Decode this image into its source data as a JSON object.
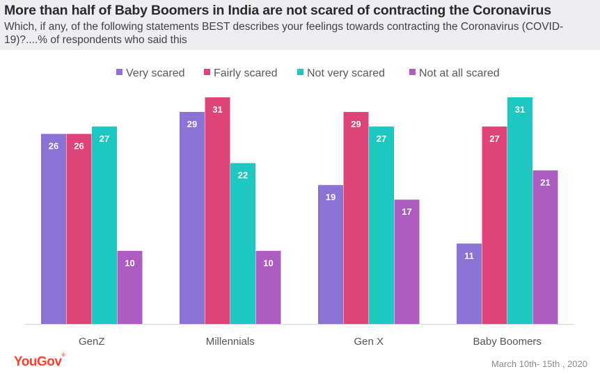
{
  "header": {
    "title": "More than half of Baby Boomers in India are not scared of contracting the Coronavirus",
    "subtitle": "Which, if any, of the following statements BEST describes your feelings towards contracting the Coronavirus (COVID-19)?....% of respondents who said this"
  },
  "colors": {
    "header_bg": "#efedf2",
    "very_scared": "#8c72d4",
    "fairly_scared": "#de4478",
    "not_very_scared": "#1ec8c1",
    "not_at_all_scared": "#ad5cc2",
    "brand": "#ff412c"
  },
  "chart_data": {
    "type": "bar",
    "categories": [
      "GenZ",
      "Millennials",
      "Gen X",
      "Baby Boomers"
    ],
    "series": [
      {
        "name": "Very scared",
        "color": "#8c72d4",
        "values": [
          26,
          29,
          19,
          11
        ]
      },
      {
        "name": "Fairly scared",
        "color": "#de4478",
        "values": [
          26,
          31,
          29,
          27
        ]
      },
      {
        "name": "Not very scared",
        "color": "#1ec8c1",
        "values": [
          27,
          22,
          27,
          31
        ]
      },
      {
        "name": "Not at all scared",
        "color": "#ad5cc2",
        "values": [
          10,
          10,
          17,
          21
        ]
      }
    ],
    "ylim": [
      0,
      31
    ],
    "grid": false,
    "legend_position": "top",
    "data_labels": true
  },
  "footer": {
    "brand": "YouGov",
    "brand_mark": "®",
    "date": "March 10th- 15th , 2020"
  }
}
